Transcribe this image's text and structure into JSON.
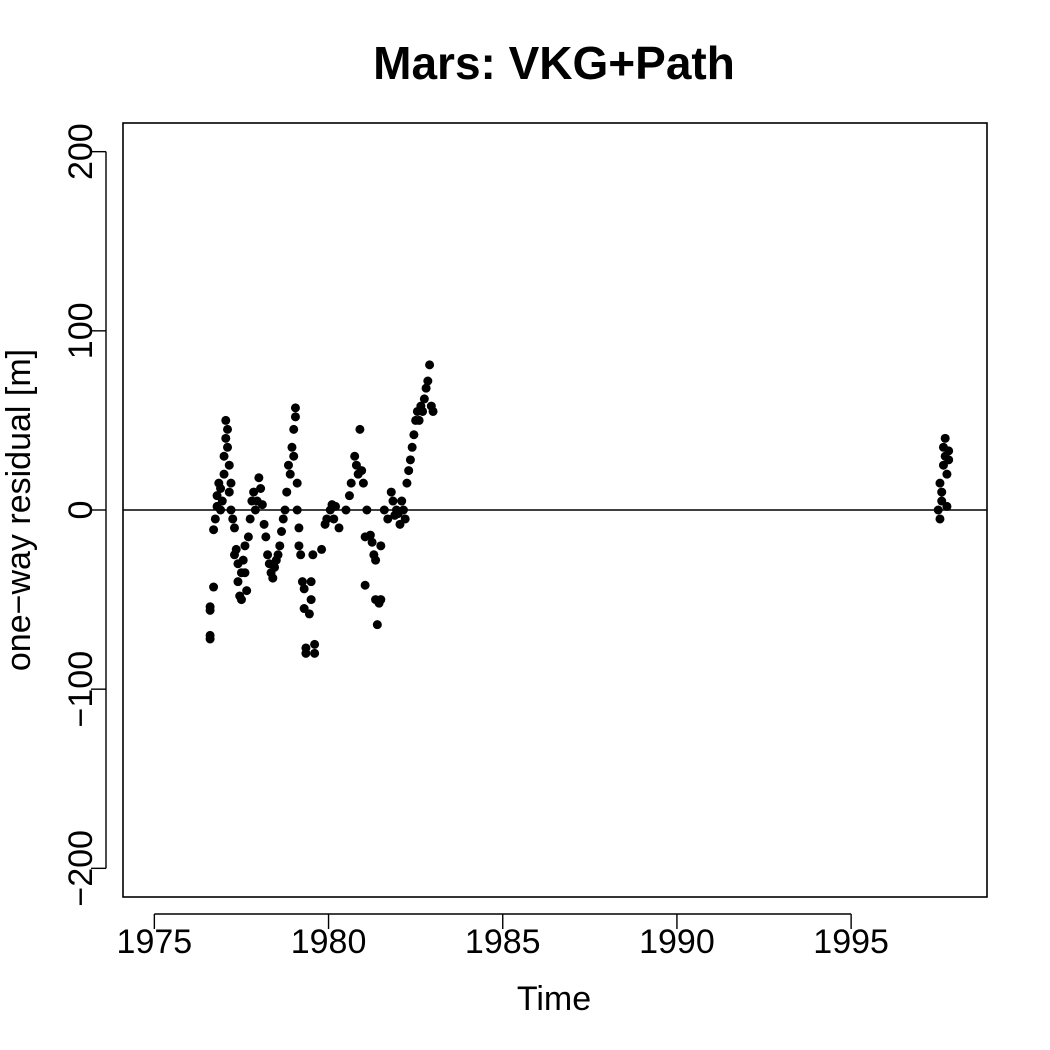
{
  "chart_data": {
    "type": "scatter",
    "title": "Mars: VKG+Path",
    "xlabel": "Time",
    "ylabel": "one−way residual [m]",
    "xlim": [
      1974.1,
      1998.9
    ],
    "ylim": [
      -216,
      216
    ],
    "xticks": [
      1975,
      1980,
      1985,
      1990,
      1995
    ],
    "xtick_labels": [
      "1975",
      "1980",
      "1985",
      "1990",
      "1995"
    ],
    "yticks": [
      -200,
      -100,
      0,
      100,
      200
    ],
    "ytick_labels": [
      "−200",
      "−100",
      "0",
      "100",
      "200"
    ],
    "reference_line_y": 0,
    "grid": false,
    "legend": "none",
    "marker_color": "#000000",
    "series": [
      {
        "points": [
          [
            1976.6,
            -72
          ],
          [
            1976.6,
            -70
          ],
          [
            1976.6,
            -56
          ],
          [
            1976.6,
            -54
          ],
          [
            1976.7,
            -43
          ],
          [
            1976.7,
            -11
          ],
          [
            1976.75,
            -5
          ],
          [
            1976.8,
            2
          ],
          [
            1976.8,
            8
          ],
          [
            1976.85,
            15
          ],
          [
            1976.9,
            0
          ],
          [
            1976.9,
            12
          ],
          [
            1976.95,
            5
          ],
          [
            1977.0,
            20
          ],
          [
            1977.0,
            30
          ],
          [
            1977.05,
            40
          ],
          [
            1977.05,
            50
          ],
          [
            1977.1,
            45
          ],
          [
            1977.1,
            35
          ],
          [
            1977.15,
            25
          ],
          [
            1977.15,
            10
          ],
          [
            1977.2,
            0
          ],
          [
            1977.2,
            15
          ],
          [
            1977.25,
            -5
          ],
          [
            1977.3,
            -10
          ],
          [
            1977.3,
            -25
          ],
          [
            1977.35,
            -22
          ],
          [
            1977.4,
            -30
          ],
          [
            1977.4,
            -40
          ],
          [
            1977.45,
            -48
          ],
          [
            1977.5,
            -50
          ],
          [
            1977.5,
            -35
          ],
          [
            1977.55,
            -28
          ],
          [
            1977.6,
            -20
          ],
          [
            1977.6,
            -35
          ],
          [
            1977.65,
            -45
          ],
          [
            1977.7,
            -15
          ],
          [
            1977.75,
            -5
          ],
          [
            1977.8,
            5
          ],
          [
            1977.85,
            10
          ],
          [
            1977.9,
            0
          ],
          [
            1977.95,
            5
          ],
          [
            1978.0,
            18
          ],
          [
            1978.05,
            12
          ],
          [
            1978.1,
            3
          ],
          [
            1978.15,
            -8
          ],
          [
            1978.2,
            -15
          ],
          [
            1978.25,
            -25
          ],
          [
            1978.3,
            -30
          ],
          [
            1978.35,
            -35
          ],
          [
            1978.4,
            -38
          ],
          [
            1978.45,
            -32
          ],
          [
            1978.5,
            -28
          ],
          [
            1978.55,
            -25
          ],
          [
            1978.6,
            -20
          ],
          [
            1978.65,
            -12
          ],
          [
            1978.7,
            -5
          ],
          [
            1978.75,
            0
          ],
          [
            1978.8,
            10
          ],
          [
            1978.85,
            25
          ],
          [
            1978.9,
            20
          ],
          [
            1978.95,
            35
          ],
          [
            1979.0,
            45
          ],
          [
            1979.05,
            57
          ],
          [
            1979.05,
            52
          ],
          [
            1979.0,
            30
          ],
          [
            1979.1,
            15
          ],
          [
            1979.1,
            0
          ],
          [
            1979.15,
            -10
          ],
          [
            1979.15,
            -20
          ],
          [
            1979.2,
            -25
          ],
          [
            1979.25,
            -40
          ],
          [
            1979.3,
            -55
          ],
          [
            1979.3,
            -44
          ],
          [
            1979.35,
            -80
          ],
          [
            1979.35,
            -77
          ],
          [
            1979.45,
            -58
          ],
          [
            1979.5,
            -50
          ],
          [
            1979.5,
            -40
          ],
          [
            1979.55,
            -25
          ],
          [
            1979.6,
            -80
          ],
          [
            1979.6,
            -75
          ],
          [
            1979.8,
            -22
          ],
          [
            1979.9,
            -8
          ],
          [
            1979.95,
            -5
          ],
          [
            1980.05,
            0
          ],
          [
            1980.1,
            3
          ],
          [
            1980.15,
            -5
          ],
          [
            1980.2,
            2
          ],
          [
            1980.3,
            -10
          ],
          [
            1980.5,
            0
          ],
          [
            1980.6,
            8
          ],
          [
            1980.65,
            15
          ],
          [
            1980.75,
            30
          ],
          [
            1980.8,
            25
          ],
          [
            1980.85,
            20
          ],
          [
            1980.9,
            45
          ],
          [
            1980.95,
            22
          ],
          [
            1981.0,
            15
          ],
          [
            1981.05,
            -42
          ],
          [
            1981.05,
            -15
          ],
          [
            1981.1,
            0
          ],
          [
            1981.2,
            -14
          ],
          [
            1981.25,
            -18
          ],
          [
            1981.3,
            -25
          ],
          [
            1981.35,
            -28
          ],
          [
            1981.35,
            -50
          ],
          [
            1981.4,
            -64
          ],
          [
            1981.45,
            -52
          ],
          [
            1981.5,
            -50
          ],
          [
            1981.5,
            -20
          ],
          [
            1981.6,
            0
          ],
          [
            1981.7,
            -5
          ],
          [
            1981.8,
            10
          ],
          [
            1981.85,
            5
          ],
          [
            1981.9,
            -3
          ],
          [
            1981.95,
            0
          ],
          [
            1982.0,
            -2
          ],
          [
            1982.05,
            -8
          ],
          [
            1982.1,
            5
          ],
          [
            1982.15,
            0
          ],
          [
            1982.2,
            -5
          ],
          [
            1982.25,
            15
          ],
          [
            1982.3,
            22
          ],
          [
            1982.35,
            28
          ],
          [
            1982.4,
            35
          ],
          [
            1982.45,
            42
          ],
          [
            1982.5,
            50
          ],
          [
            1982.55,
            55
          ],
          [
            1982.6,
            50
          ],
          [
            1982.65,
            58
          ],
          [
            1982.7,
            55
          ],
          [
            1982.75,
            62
          ],
          [
            1982.8,
            68
          ],
          [
            1982.85,
            72
          ],
          [
            1982.9,
            81
          ],
          [
            1982.95,
            58
          ],
          [
            1983.0,
            55
          ],
          [
            1997.5,
            0
          ],
          [
            1997.55,
            -5
          ],
          [
            1997.55,
            15
          ],
          [
            1997.6,
            5
          ],
          [
            1997.6,
            10
          ],
          [
            1997.65,
            25
          ],
          [
            1997.65,
            35
          ],
          [
            1997.7,
            40
          ],
          [
            1997.7,
            30
          ],
          [
            1997.75,
            20
          ],
          [
            1997.75,
            2
          ],
          [
            1997.8,
            33
          ],
          [
            1997.8,
            28
          ]
        ]
      }
    ]
  }
}
